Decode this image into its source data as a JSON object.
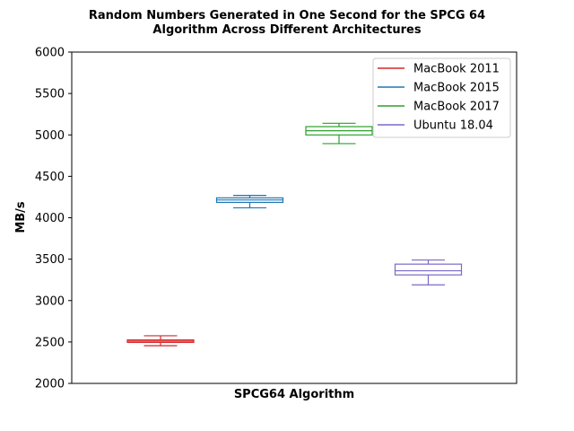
{
  "chart_data": {
    "type": "box",
    "title": [
      "Random Numbers Generated in One Second for the SPCG 64",
      "Algorithm Across Different Architectures"
    ],
    "xlabel": "SPCG64 Algorithm",
    "ylabel": "MB/s",
    "ylim": [
      2000,
      6000
    ],
    "yticks": [
      "2000",
      "2500",
      "3000",
      "3500",
      "4000",
      "4500",
      "5000",
      "5500",
      "6000"
    ],
    "legend_position": "upper right",
    "series": [
      {
        "name": "MacBook 2011",
        "color": "#d62728",
        "whisker_low": 2455,
        "q1": 2495,
        "median": 2510,
        "q3": 2525,
        "whisker_high": 2575
      },
      {
        "name": "MacBook 2015",
        "color": "#1f77b4",
        "whisker_low": 4120,
        "q1": 4185,
        "median": 4215,
        "q3": 4240,
        "whisker_high": 4270
      },
      {
        "name": "MacBook 2017",
        "color": "#2ca02c",
        "whisker_low": 4895,
        "q1": 5000,
        "median": 5050,
        "q3": 5100,
        "whisker_high": 5140
      },
      {
        "name": "Ubuntu 18.04",
        "color": "#7b68c8",
        "whisker_low": 3190,
        "q1": 3310,
        "median": 3360,
        "q3": 3440,
        "whisker_high": 3490
      }
    ]
  }
}
